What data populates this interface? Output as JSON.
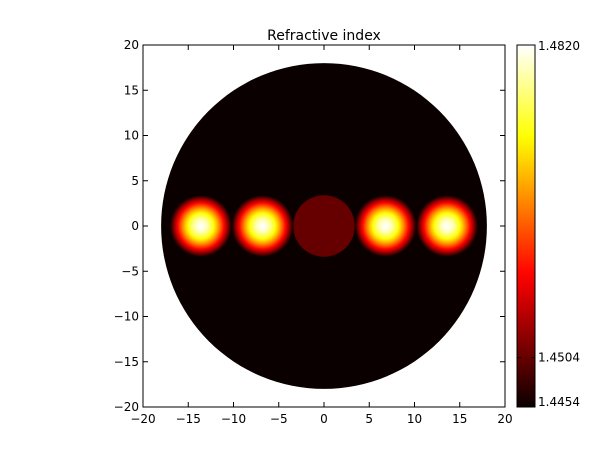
{
  "chart_data": {
    "type": "heatmap",
    "title": "Refractive index",
    "xlabel": "",
    "ylabel": "",
    "xlim": [
      -20,
      20
    ],
    "ylim": [
      -20,
      20
    ],
    "xticks": [
      -20,
      -15,
      -10,
      -5,
      0,
      5,
      10,
      15,
      20
    ],
    "yticks": [
      -20,
      -15,
      -10,
      -5,
      0,
      5,
      10,
      15,
      20
    ],
    "xtick_labels": [
      "−20",
      "−15",
      "−10",
      "−5",
      "0",
      "5",
      "10",
      "15",
      "20"
    ],
    "ytick_labels": [
      "−20",
      "−15",
      "−10",
      "−5",
      "0",
      "5",
      "10",
      "15",
      "20"
    ],
    "colormap": "hot",
    "colorbar": {
      "min": 1.4454,
      "max": 1.482,
      "ticks": [
        1.482,
        1.4504,
        1.4454
      ],
      "tick_labels": [
        "1.4820",
        "1.4504",
        "1.4454"
      ]
    },
    "cladding": {
      "center": [
        0,
        0
      ],
      "radius": 18,
      "index": 1.4454
    },
    "central_core": {
      "center": [
        0,
        0
      ],
      "radius": 3.4,
      "index": 1.4504
    },
    "graded_cores": [
      {
        "center": [
          -13.6,
          0
        ],
        "radius": 3.4,
        "peak_index": 1.482
      },
      {
        "center": [
          -6.8,
          0
        ],
        "radius": 3.4,
        "peak_index": 1.482
      },
      {
        "center": [
          6.8,
          0
        ],
        "radius": 3.4,
        "peak_index": 1.482
      },
      {
        "center": [
          13.6,
          0
        ],
        "radius": 3.4,
        "peak_index": 1.482
      }
    ]
  }
}
